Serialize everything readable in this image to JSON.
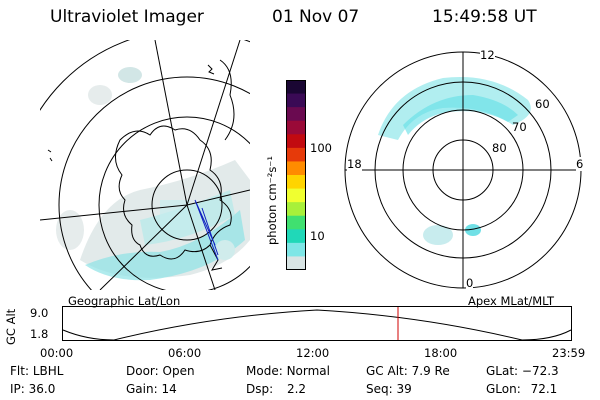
{
  "header": {
    "title": "Ultraviolet Imager",
    "date": "01 Nov 07",
    "time": "15:49:58 UT"
  },
  "colorbar": {
    "unit_label": "photon cm⁻²s⁻¹",
    "ticks": [
      "100",
      "10"
    ],
    "colors": [
      "#1a0633",
      "#3a0a55",
      "#6a0a50",
      "#9a0a38",
      "#c20a10",
      "#e63a0a",
      "#ff8c00",
      "#ffd400",
      "#f0ff30",
      "#a8f03a",
      "#40e070",
      "#20d8b8",
      "#7ee6e6",
      "#d8e4e4"
    ]
  },
  "left_map": {
    "label": "Geographic Lat/Lon"
  },
  "right_map": {
    "label": "Apex MLat/MLT",
    "mlt_labels": [
      "12",
      "18",
      "6",
      "0"
    ],
    "mlat_labels": [
      "60",
      "70",
      "80"
    ]
  },
  "timeline": {
    "y_axis_label": "GC Alt",
    "y_ticks": [
      "9.0",
      "1.8"
    ],
    "x_ticks": [
      "00:00",
      "06:00",
      "12:00",
      "18:00",
      "23:59"
    ],
    "current_marker_time": "15:49:58",
    "marker_color": "#d00000"
  },
  "info": {
    "flt_label": "Flt:",
    "flt": "LBHL",
    "ip_label": "IP:",
    "ip": "36.0",
    "door_label": "Door:",
    "door": "Open",
    "gain_label": "Gain:",
    "gain": "14",
    "mode_label": "Mode:",
    "mode": "Normal",
    "dsp_label": "Dsp:",
    "dsp": "2.2",
    "gcalt_label": "GC Alt:",
    "gcalt": "7.9 Re",
    "seq_label": "Seq:",
    "seq": "39",
    "glat_label": "GLat:",
    "glat": "−72.3",
    "glon_label": "GLon:",
    "glon": "72.1"
  }
}
